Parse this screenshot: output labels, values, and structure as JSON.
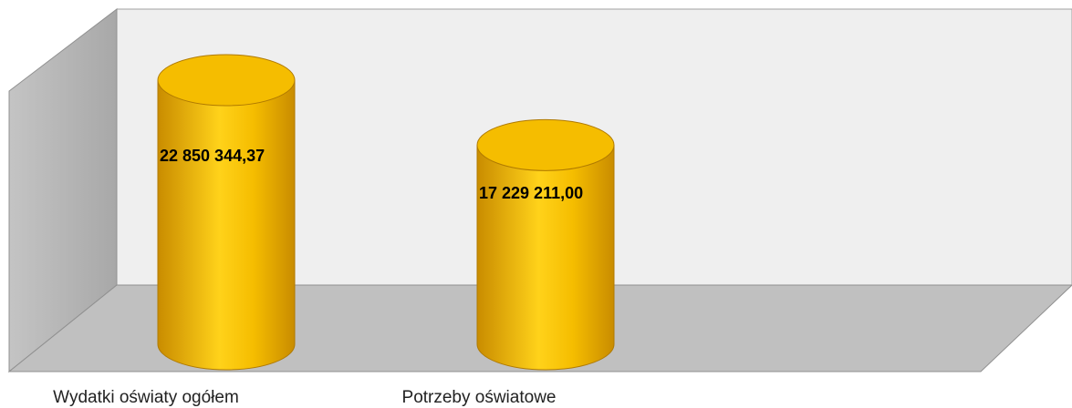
{
  "chart_data": {
    "type": "cylinder",
    "categories": [
      "Wydatki oświaty ogółem",
      "Potrzeby oświatowe"
    ],
    "values": [
      22850344.37,
      17229211.0
    ],
    "value_labels": [
      "22 850 344,37",
      "17 229 211,00"
    ],
    "color": "#f5bd00"
  }
}
